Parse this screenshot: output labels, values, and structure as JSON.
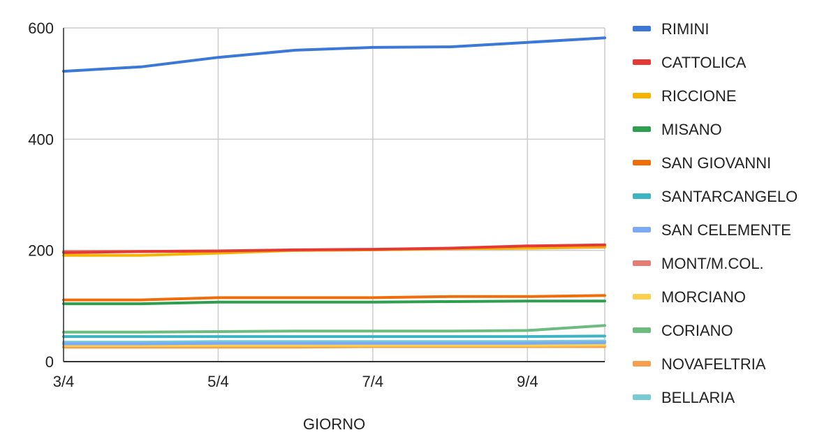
{
  "chart_data": {
    "type": "line",
    "title": "",
    "xlabel": "GIORNO",
    "ylabel": "",
    "x": [
      "3/4",
      "4/4",
      "5/4",
      "6/4",
      "7/4",
      "8/4",
      "9/4",
      "10/4"
    ],
    "x_tick_labels": [
      "3/4",
      "5/4",
      "7/4",
      "9/4"
    ],
    "y_ticks": [
      0,
      200,
      400,
      600
    ],
    "ylim": [
      0,
      600
    ],
    "grid": true,
    "legend_position": "right",
    "series": [
      {
        "name": "RIMINI",
        "color": "#3c78d8",
        "values": [
          522,
          530,
          547,
          560,
          565,
          566,
          574,
          582
        ]
      },
      {
        "name": "CATTOLICA",
        "color": "#e53935",
        "values": [
          196,
          198,
          199,
          201,
          202,
          204,
          208,
          210
        ]
      },
      {
        "name": "RICCIONE",
        "color": "#f4b400",
        "values": [
          191,
          191,
          195,
          200,
          201,
          203,
          204,
          207
        ]
      },
      {
        "name": "MISANO",
        "color": "#2e9e4f",
        "values": [
          104,
          104,
          107,
          107,
          107,
          108,
          109,
          109
        ]
      },
      {
        "name": "SAN GIOVANNI",
        "color": "#f06d0c",
        "values": [
          111,
          111,
          115,
          115,
          115,
          117,
          117,
          119
        ]
      },
      {
        "name": "SANTARCANGELO",
        "color": "#3cb4c2",
        "values": [
          45,
          45,
          45,
          45,
          45,
          45,
          45,
          46
        ]
      },
      {
        "name": "SAN CELEMENTE",
        "color": "#7baaf7",
        "values": [
          32,
          32,
          33,
          33,
          33,
          33,
          33,
          34
        ]
      },
      {
        "name": "MONT/M.COL.",
        "color": "#e67c73",
        "values": [
          198,
          198,
          199,
          200,
          201,
          203,
          204,
          206
        ]
      },
      {
        "name": "MORCIANO",
        "color": "#fcd04f",
        "values": [
          29,
          29,
          29,
          29,
          29,
          29,
          29,
          30
        ]
      },
      {
        "name": "CORIANO",
        "color": "#6cbc80",
        "values": [
          53,
          53,
          54,
          55,
          55,
          55,
          56,
          65
        ]
      },
      {
        "name": "NOVAFELTRIA",
        "color": "#f6a04d",
        "values": [
          26,
          26,
          26,
          26,
          27,
          27,
          27,
          27
        ]
      },
      {
        "name": "BELLARIA",
        "color": "#78cbd5",
        "values": [
          35,
          35,
          36,
          36,
          36,
          36,
          36,
          37
        ]
      }
    ]
  }
}
